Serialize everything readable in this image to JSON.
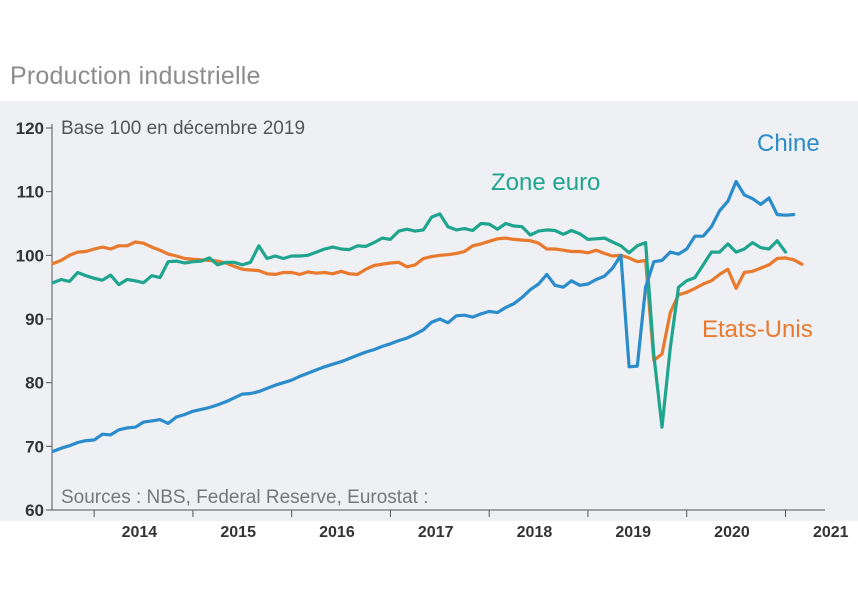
{
  "page_title": "Production industrielle",
  "chart_data": {
    "type": "line",
    "title": "Production industrielle",
    "subtitle": "Base 100 en décembre 2019",
    "source": "Sources : NBS, Federal Reserve, Eurostat :",
    "xlabel": "",
    "ylabel": "",
    "ylim": [
      60,
      120
    ],
    "yticks": [
      60,
      70,
      80,
      90,
      100,
      110,
      120
    ],
    "xticks": [
      "2014",
      "2015",
      "2016",
      "2017",
      "2018",
      "2019",
      "2020",
      "2021"
    ],
    "x_start": "2013-08",
    "x_step": "month",
    "series": [
      {
        "name": "Chine",
        "color": "#2b8ccb",
        "values": [
          69.2,
          69.7,
          70.1,
          70.6,
          70.9,
          71.0,
          71.9,
          71.8,
          72.6,
          72.9,
          73.0,
          73.8,
          74.0,
          74.2,
          73.6,
          74.6,
          75.0,
          75.5,
          75.8,
          76.1,
          76.5,
          77.0,
          77.6,
          78.2,
          78.3,
          78.6,
          79.1,
          79.6,
          80.0,
          80.4,
          81.0,
          81.5,
          82.0,
          82.5,
          82.9,
          83.3,
          83.8,
          84.3,
          84.8,
          85.2,
          85.7,
          86.1,
          86.6,
          87.0,
          87.6,
          88.3,
          89.5,
          90.0,
          89.4,
          90.5,
          90.6,
          90.3,
          90.8,
          91.2,
          91.0,
          91.8,
          92.4,
          93.4,
          94.6,
          95.5,
          97.0,
          95.3,
          95.0,
          96.0,
          95.3,
          95.5,
          96.2,
          96.7,
          98.0,
          100.0,
          82.5,
          82.6,
          95.0,
          99.0,
          99.2,
          100.5,
          100.2,
          101.0,
          103.0,
          103.0,
          104.5,
          107.0,
          108.5,
          111.6,
          109.5,
          108.9,
          108.0,
          109.0,
          106.4,
          106.3,
          106.4
        ]
      },
      {
        "name": "Zone euro",
        "color": "#1fa58e",
        "values": [
          95.7,
          96.2,
          95.9,
          97.3,
          96.8,
          96.4,
          96.1,
          96.9,
          95.4,
          96.2,
          96.0,
          95.7,
          96.8,
          96.5,
          99.0,
          99.1,
          98.8,
          99.0,
          99.1,
          99.6,
          98.5,
          98.9,
          98.9,
          98.5,
          98.9,
          101.5,
          99.5,
          99.9,
          99.5,
          99.9,
          99.9,
          100.0,
          100.5,
          101.0,
          101.3,
          101.0,
          100.9,
          101.5,
          101.4,
          102.0,
          102.7,
          102.5,
          103.8,
          104.1,
          103.8,
          104.0,
          106.0,
          106.5,
          104.5,
          104.0,
          104.2,
          103.9,
          105.0,
          104.9,
          104.1,
          105.0,
          104.6,
          104.5,
          103.2,
          103.8,
          104.0,
          103.9,
          103.3,
          103.9,
          103.4,
          102.5,
          102.6,
          102.7,
          102.1,
          101.5,
          100.4,
          101.5,
          102.0,
          84.4,
          73.0,
          85.5,
          95.0,
          96.0,
          96.5,
          98.5,
          100.5,
          100.5,
          101.8,
          100.5,
          101.0,
          102.0,
          101.2,
          101.0,
          102.3,
          100.5
        ]
      },
      {
        "name": "Etats-Unis",
        "color": "#e8792d",
        "values": [
          98.7,
          99.2,
          100.0,
          100.5,
          100.6,
          101.0,
          101.3,
          101.0,
          101.5,
          101.5,
          102.1,
          101.9,
          101.3,
          100.8,
          100.2,
          99.9,
          99.5,
          99.4,
          99.3,
          99.2,
          99.1,
          98.8,
          98.3,
          97.8,
          97.7,
          97.6,
          97.1,
          97.0,
          97.3,
          97.3,
          97.0,
          97.4,
          97.2,
          97.3,
          97.1,
          97.5,
          97.1,
          97.0,
          97.8,
          98.4,
          98.6,
          98.8,
          98.9,
          98.2,
          98.5,
          99.5,
          99.8,
          100.0,
          100.1,
          100.3,
          100.6,
          101.5,
          101.8,
          102.2,
          102.6,
          102.7,
          102.5,
          102.4,
          102.3,
          101.9,
          101.0,
          101.0,
          100.8,
          100.6,
          100.6,
          100.4,
          100.8,
          100.3,
          99.9,
          100.0,
          99.6,
          99.0,
          99.2,
          83.5,
          84.5,
          91.0,
          93.8,
          94.2,
          94.8,
          95.5,
          96.0,
          97.0,
          97.8,
          94.8,
          97.3,
          97.5,
          98.0,
          98.5,
          99.5,
          99.6,
          99.3,
          98.6
        ]
      }
    ]
  }
}
